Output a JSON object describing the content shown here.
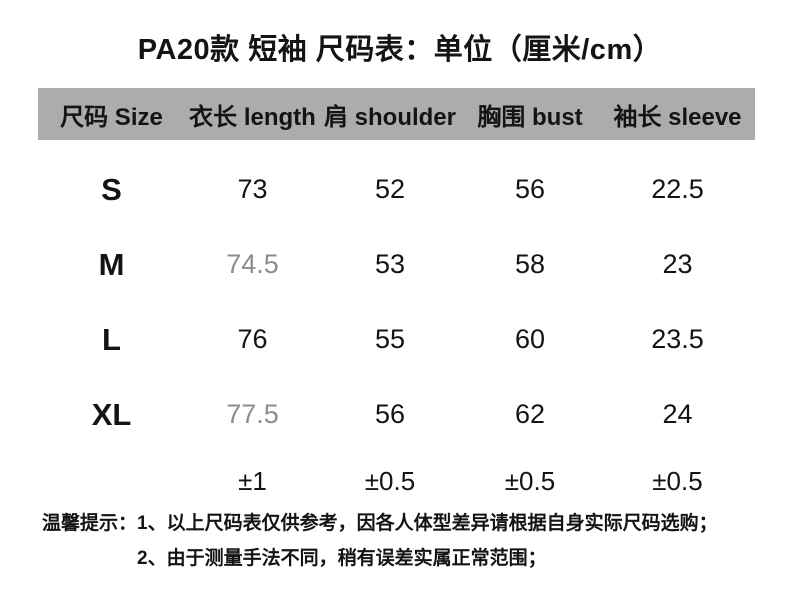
{
  "title": "PA20款 短袖 尺码表：单位（厘米/cm）",
  "table": {
    "headers": [
      {
        "label": "尺码 Size"
      },
      {
        "label": "衣长 length"
      },
      {
        "label": "肩 shoulder"
      },
      {
        "label": "胸围 bust"
      },
      {
        "label": "袖长 sleeve"
      }
    ],
    "rows": [
      {
        "size": "S",
        "length": "73",
        "shoulder": "52",
        "bust": "56",
        "sleeve": "22.5"
      },
      {
        "size": "M",
        "length": "74.5",
        "shoulder": "53",
        "bust": "58",
        "sleeve": "23"
      },
      {
        "size": "L",
        "length": "76",
        "shoulder": "55",
        "bust": "60",
        "sleeve": "23.5"
      },
      {
        "size": "XL",
        "length": "77.5",
        "shoulder": "56",
        "bust": "62",
        "sleeve": "24"
      }
    ],
    "tolerance_row": {
      "size": "",
      "length": "±1",
      "shoulder": "±0.5",
      "bust": "±0.5",
      "sleeve": "±0.5"
    }
  },
  "notes": {
    "prefix": "温馨提示：",
    "items": [
      "1、以上尺码表仅供参考，因各人体型差异请根据自身实际尺码选购；",
      "2、由于测量手法不同，稍有误差实属正常范围；"
    ]
  },
  "colors": {
    "header_bg": "#acacac",
    "text": "#141414",
    "muted_value": "#8c8c8c"
  }
}
